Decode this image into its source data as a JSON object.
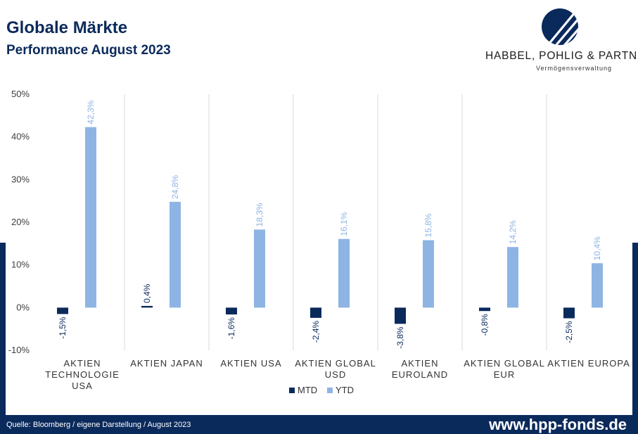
{
  "header": {
    "title": "Globale Märkte",
    "subtitle": "Performance August 2023"
  },
  "logo": {
    "name": "HABBEL, POHLIG & PARTNER",
    "tagline": "Vermögensverwaltung"
  },
  "footer": {
    "source": "Quelle: Bloomberg / eigene Darstellung / August 2023",
    "url": "www.hpp-fonds.de"
  },
  "colors": {
    "mtd": "#0b2a5c",
    "ytd": "#8eb4e3",
    "brand": "#0b2a5c"
  },
  "chart_data": {
    "type": "bar",
    "categories": [
      [
        "AKTIEN",
        "TECHNOLOGIE",
        "USA"
      ],
      [
        "AKTIEN JAPAN"
      ],
      [
        "AKTIEN USA"
      ],
      [
        "AKTIEN GLOBAL",
        "USD"
      ],
      [
        "AKTIEN",
        "EUROLAND"
      ],
      [
        "AKTIEN GLOBAL",
        "EUR"
      ],
      [
        "AKTIEN EUROPA"
      ]
    ],
    "series": [
      {
        "name": "MTD",
        "values": [
          -1.5,
          0.4,
          -1.6,
          -2.4,
          -3.8,
          -0.8,
          -2.5
        ],
        "labels": [
          "-1,5%",
          "0,4%",
          "-1,6%",
          "-2,4%",
          "-3,8%",
          "-0,8%",
          "-2,5%"
        ]
      },
      {
        "name": "YTD",
        "values": [
          42.3,
          24.8,
          18.3,
          16.1,
          15.8,
          14.2,
          10.4
        ],
        "labels": [
          "42,3%",
          "24,8%",
          "18,3%",
          "16,1%",
          "15,8%",
          "14,2%",
          "10,4%"
        ]
      }
    ],
    "ylim": [
      -10,
      50
    ],
    "yticks": [
      -10,
      0,
      10,
      20,
      30,
      40,
      50
    ],
    "ytick_labels": [
      "-10%",
      "0%",
      "10%",
      "20%",
      "30%",
      "40%",
      "50%"
    ],
    "legend_position": "bottom",
    "vertical_gridlines": true
  }
}
